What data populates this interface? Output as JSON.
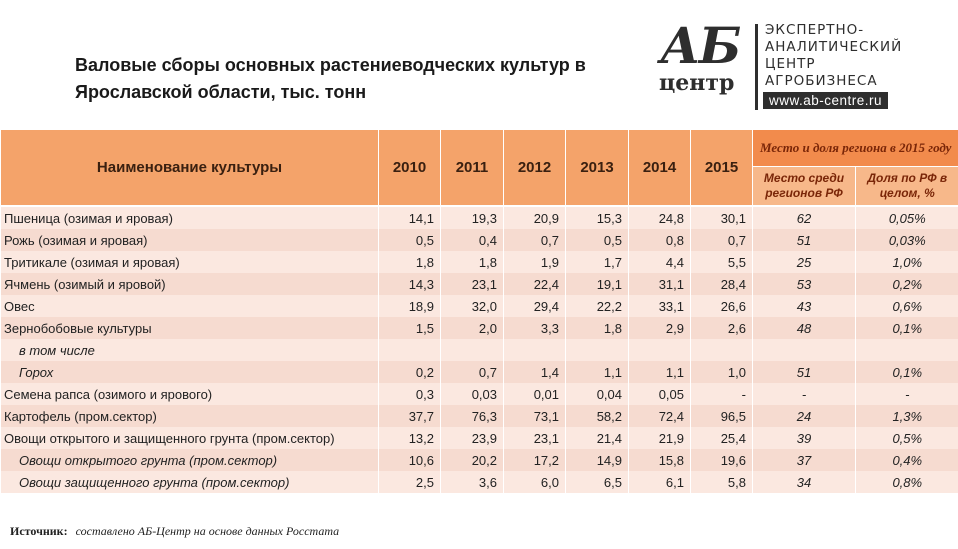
{
  "title": "Валовые сборы основных растениеводческих культур в Ярославской области, тыс. тонн",
  "logo": {
    "mark": "АБ",
    "sub": "центр",
    "lines": [
      "ЭКСПЕРТНО-",
      "АНАЛИТИЧЕСКИЙ",
      "ЦЕНТР",
      "АГРОБИЗНЕСА"
    ],
    "url": "www.ab-centre.ru"
  },
  "table": {
    "header": {
      "name": "Наименование культуры",
      "years": [
        "2010",
        "2011",
        "2012",
        "2013",
        "2014",
        "2015"
      ],
      "group": "Место и доля региона в 2015 году",
      "sub": [
        "Место среди регионов РФ",
        "Доля по РФ в целом, %"
      ]
    },
    "rows": [
      [
        "Пшеница (озимая и яровая)",
        "14,1",
        "19,3",
        "20,9",
        "15,3",
        "24,8",
        "30,1",
        "62",
        "0,05%"
      ],
      [
        "Рожь (озимая и яровая)",
        "0,5",
        "0,4",
        "0,7",
        "0,5",
        "0,8",
        "0,7",
        "51",
        "0,03%"
      ],
      [
        "Тритикале (озимая и яровая)",
        "1,8",
        "1,8",
        "1,9",
        "1,7",
        "4,4",
        "5,5",
        "25",
        "1,0%"
      ],
      [
        "Ячмень (озимый и яровой)",
        "14,3",
        "23,1",
        "22,4",
        "19,1",
        "31,1",
        "28,4",
        "53",
        "0,2%"
      ],
      [
        "Овес",
        "18,9",
        "32,0",
        "29,4",
        "22,2",
        "33,1",
        "26,6",
        "43",
        "0,6%"
      ],
      [
        "Зернобобовые культуры",
        "1,5",
        "2,0",
        "3,3",
        "1,8",
        "2,9",
        "2,6",
        "48",
        "0,1%"
      ],
      [
        "в том числе"
      ],
      [
        "Горох",
        "0,2",
        "0,7",
        "1,4",
        "1,1",
        "1,1",
        "1,0",
        "51",
        "0,1%"
      ],
      [
        "Семена рапса (озимого и ярового)",
        "0,3",
        "0,03",
        "0,01",
        "0,04",
        "0,05",
        "-",
        "-",
        "-"
      ],
      [
        "Картофель (пром.сектор)",
        "37,7",
        "76,3",
        "73,1",
        "58,2",
        "72,4",
        "96,5",
        "24",
        "1,3%"
      ],
      [
        "Овощи открытого и защищенного грунта (пром.сектор)",
        "13,2",
        "23,9",
        "23,1",
        "21,4",
        "21,9",
        "25,4",
        "39",
        "0,5%"
      ],
      [
        "Овощи открытого грунта (пром.сектор)",
        "10,6",
        "20,2",
        "17,2",
        "14,9",
        "15,8",
        "19,6",
        "37",
        "0,4%"
      ],
      [
        "Овощи защищенного грунта (пром.сектор)",
        "2,5",
        "3,6",
        "6,0",
        "6,5",
        "6,1",
        "5,8",
        "34",
        "0,8%"
      ]
    ]
  },
  "source": {
    "label": "Источник:",
    "text": "составлено АБ-Центр на основе данных Росстата"
  }
}
